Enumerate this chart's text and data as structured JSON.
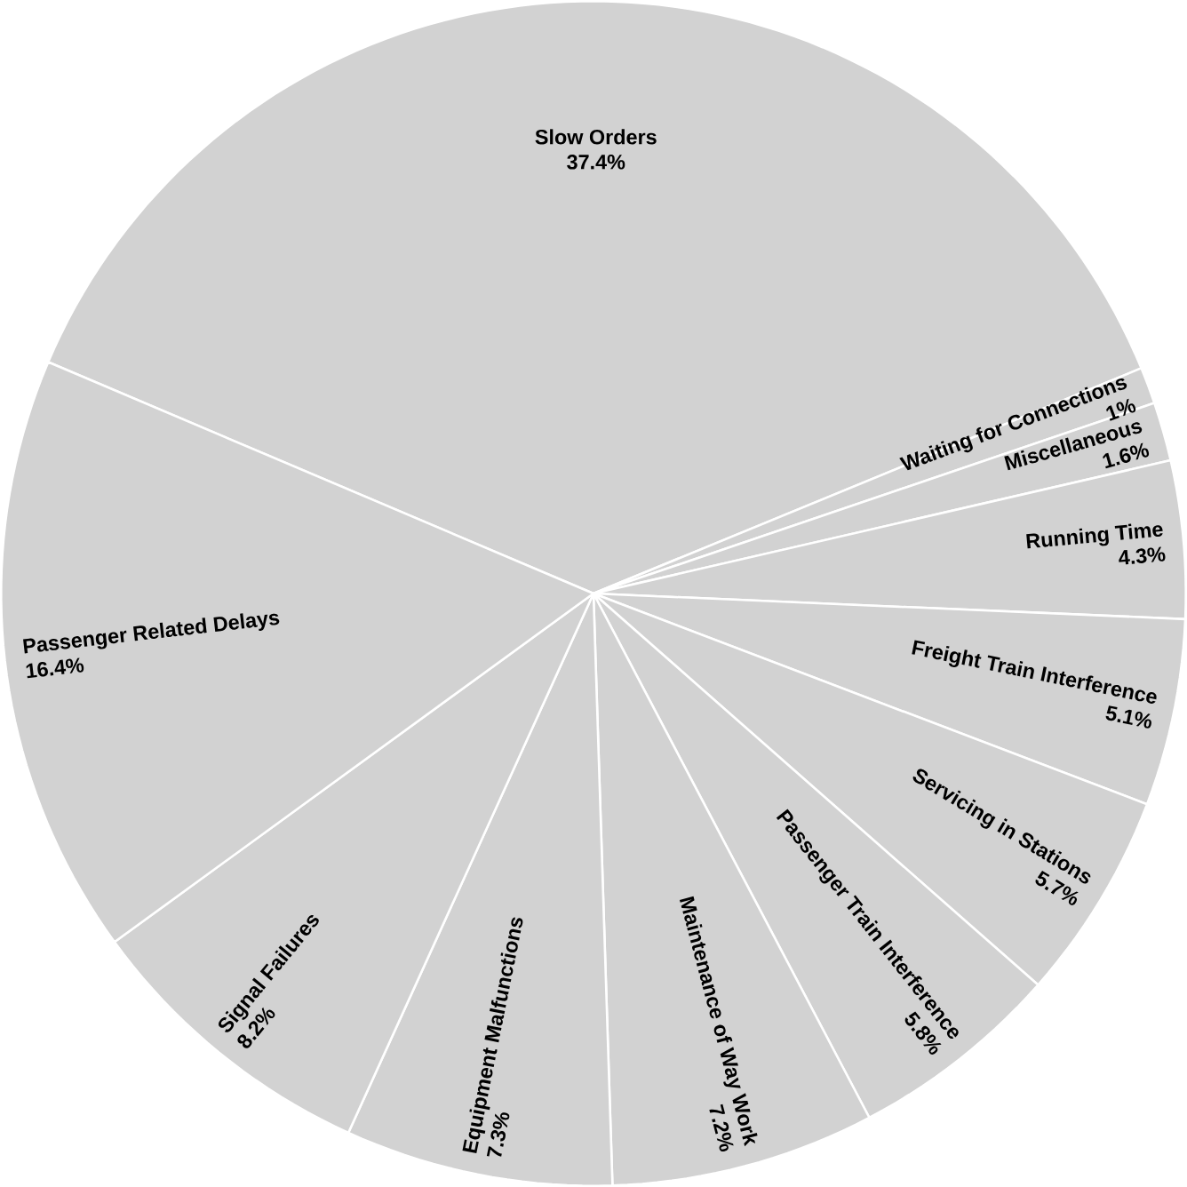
{
  "chart_data": {
    "type": "pie",
    "categories": [
      "Slow Orders",
      "Waiting for Connections",
      "Miscellaneous",
      "Running Time",
      "Freight Train Interference",
      "Servicing in Stations",
      "Passenger Train Interference",
      "Maintenance of Way Work",
      "Equipment Malfunctions",
      "Signal Failures",
      "Passenger Related Delays"
    ],
    "values": [
      37.4,
      1,
      1.6,
      4.3,
      5.1,
      5.7,
      5.8,
      7.2,
      7.3,
      8.2,
      16.4
    ],
    "value_labels": [
      "37.4%",
      "1%",
      "1.6%",
      "4.3%",
      "5.1%",
      "5.7%",
      "5.8%",
      "7.2%",
      "7.3%",
      "8.2%",
      "16.4%"
    ],
    "colors": [
      "#d2d2d2",
      "#d2d2d2",
      "#d2d2d2",
      "#d2d2d2",
      "#d2d2d2",
      "#d2d2d2",
      "#d2d2d2",
      "#d2d2d2",
      "#d2d2d2",
      "#d2d2d2",
      "#d2d2d2"
    ],
    "data_labels": true
  }
}
